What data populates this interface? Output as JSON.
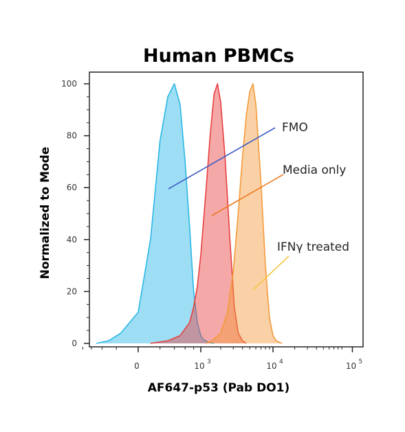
{
  "chart_data": {
    "type": "area",
    "title": "Human PBMCs",
    "xlabel": "AF647-p53 (Pab DO1)",
    "ylabel": "Normalized to Mode",
    "ylim": [
      0,
      100
    ],
    "xscale": "biexponential",
    "yticks": [
      "0",
      "20",
      "40",
      "60",
      "80",
      "100"
    ],
    "xticks": [
      {
        "label": "0",
        "exp": null,
        "value": 0
      },
      {
        "label": "10",
        "exp": "3",
        "value": 1000
      },
      {
        "label": "10",
        "exp": "4",
        "value": 10000
      },
      {
        "label": "10",
        "exp": "5",
        "value": 100000
      }
    ],
    "grid": false,
    "legend": "none",
    "series": [
      {
        "name": "FMO",
        "color": "#29b6e6",
        "x": [
          -500,
          -300,
          -150,
          0,
          100,
          200,
          300,
          400,
          500,
          600,
          700,
          800,
          900,
          1000,
          1100,
          1200,
          1300,
          1450,
          1600
        ],
        "y": [
          0,
          1,
          4,
          12,
          40,
          78,
          95,
          100,
          92,
          70,
          45,
          20,
          8,
          3,
          1.5,
          1,
          0.5,
          0.2,
          0
        ]
      },
      {
        "name": "Media only",
        "color": "#e83e3e",
        "x": [
          100,
          300,
          500,
          700,
          800,
          900,
          1000,
          1200,
          1400,
          1600,
          1800,
          2000,
          2300,
          2700,
          3100,
          3500,
          4000,
          4500
        ],
        "y": [
          0,
          1,
          3,
          8,
          14,
          22,
          34,
          58,
          80,
          96,
          100,
          93,
          72,
          40,
          14,
          4,
          1,
          0
        ]
      },
      {
        "name": "IFNγ treated",
        "color": "#f39a3a",
        "x": [
          1200,
          1500,
          2000,
          2500,
          3000,
          3500,
          4000,
          4500,
          5000,
          5500,
          6000,
          7000,
          8000,
          9000,
          10000,
          11000,
          13000
        ],
        "y": [
          0,
          1,
          4,
          12,
          28,
          50,
          72,
          88,
          97,
          100,
          92,
          62,
          30,
          10,
          3,
          1,
          0
        ]
      }
    ],
    "annotations": [
      {
        "text": "FMO",
        "color": "#3b5cc4"
      },
      {
        "text": "Media only",
        "color": "#ef7a22"
      },
      {
        "text": "IFNγ treated",
        "color": "#f5c542"
      }
    ]
  }
}
